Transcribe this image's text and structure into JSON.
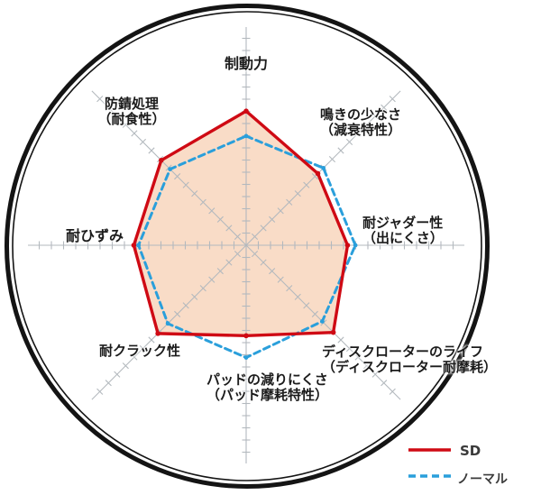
{
  "chart_data": {
    "type": "radar",
    "title": "",
    "axis_count": 8,
    "categories": [
      "制動力",
      "鳴きの少なさ（減衰特性）",
      "耐ジャダー性（出にくさ）",
      "ディスクローターのライフ（ディスクローター耐摩耗）",
      "パッドの減りにくさ（パッド摩耗特性）",
      "耐クラック性",
      "耐ひずみ",
      "防錆処理（耐食性）"
    ],
    "series": [
      {
        "name": "SD",
        "style": "solid",
        "color": "#cf0a14",
        "values": [
          8.6,
          6.5,
          6.5,
          7.9,
          5.8,
          8.0,
          7.2,
          7.7
        ]
      },
      {
        "name": "ノーマル",
        "style": "dashed",
        "color": "#2a9fdb",
        "values": [
          7.0,
          7.0,
          7.0,
          6.9,
          7.2,
          7.1,
          6.9,
          6.9
        ]
      }
    ],
    "scale_max": 10,
    "grid": "ticked-spokes",
    "legend_position": "bottom-right",
    "fill_series": "SD",
    "fill_color": "#f9dcc7"
  },
  "labels": {
    "braking": {
      "line1": "制動力"
    },
    "noise": {
      "line1": "鳴きの少なさ",
      "line2": "（減衰特性）"
    },
    "judder": {
      "line1": "耐ジャダー性",
      "line2": "（出にくさ）"
    },
    "rotor_life": {
      "line1": "ディスクローターのライフ",
      "line2": "（ディスクローター耐摩耗）"
    },
    "pad_wear": {
      "line1": "パッドの減りにくさ",
      "line2": "（パッド摩耗特性）"
    },
    "crack": {
      "line1": "耐クラック性"
    },
    "distortion": {
      "line1": "耐ひずみ"
    },
    "rust": {
      "line1": "防錆処理",
      "line2": "（耐食性）"
    }
  },
  "legend": {
    "items": [
      {
        "label": "SD",
        "color": "#cf0a14",
        "style": "solid"
      },
      {
        "label": "ノーマル",
        "color": "#2a9fdb",
        "style": "dashed"
      }
    ]
  },
  "colors": {
    "ring": "#141414",
    "axis": "#b3b9be",
    "text": "#1b1b1b",
    "background": "#ffffff"
  }
}
